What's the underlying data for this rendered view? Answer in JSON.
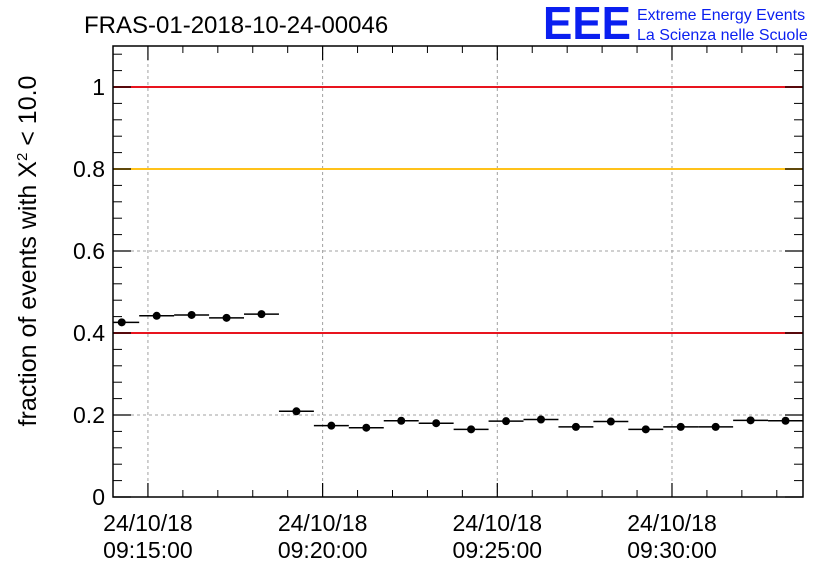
{
  "chart_data": {
    "type": "scatter",
    "title": "FRAS-01-2018-10-24-00046",
    "ylabel_main": "fraction of events with X",
    "ylabel_sup": "2",
    "ylabel_tail": " < 10.0",
    "ylim": [
      0,
      1.1
    ],
    "yticks": [
      0,
      0.2,
      0.4,
      0.6,
      0.8,
      1
    ],
    "ytick_labels": [
      "0",
      "0.2",
      "0.4",
      "0.6",
      "0.8",
      "1"
    ],
    "xlim_minutes": [
      -1,
      18.75
    ],
    "xticks_minutes": [
      0,
      5,
      10,
      15
    ],
    "xtick_labels": [
      {
        "date": "24/10/18",
        "time": "09:15:00"
      },
      {
        "date": "24/10/18",
        "time": "09:20:00"
      },
      {
        "date": "24/10/18",
        "time": "09:25:00"
      },
      {
        "date": "24/10/18",
        "time": "09:30:00"
      }
    ],
    "grid": true,
    "bin_width_minutes": 1,
    "points_minutes": [
      -0.75,
      0.25,
      1.25,
      2.25,
      3.25,
      4.25,
      5.25,
      6.25,
      7.25,
      8.25,
      9.25,
      10.25,
      11.25,
      12.25,
      13.25,
      14.25,
      15.25,
      16.25,
      17.25,
      18.25
    ],
    "values": [
      0.426,
      0.442,
      0.444,
      0.437,
      0.446,
      0.209,
      0.174,
      0.169,
      0.186,
      0.18,
      0.165,
      0.185,
      0.189,
      0.171,
      0.184,
      0.165,
      0.171,
      0.171,
      0.187,
      0.186
    ],
    "reference_lines": [
      {
        "y": 1.0,
        "color": "#e8141e"
      },
      {
        "y": 0.8,
        "color": "#ffc21a"
      },
      {
        "y": 0.4,
        "color": "#e8141e"
      }
    ]
  },
  "logo": {
    "letters": "EEE",
    "line1": "Extreme Energy Events",
    "line2": "La Scienza nelle Scuole",
    "color": "#0a1ff0"
  }
}
